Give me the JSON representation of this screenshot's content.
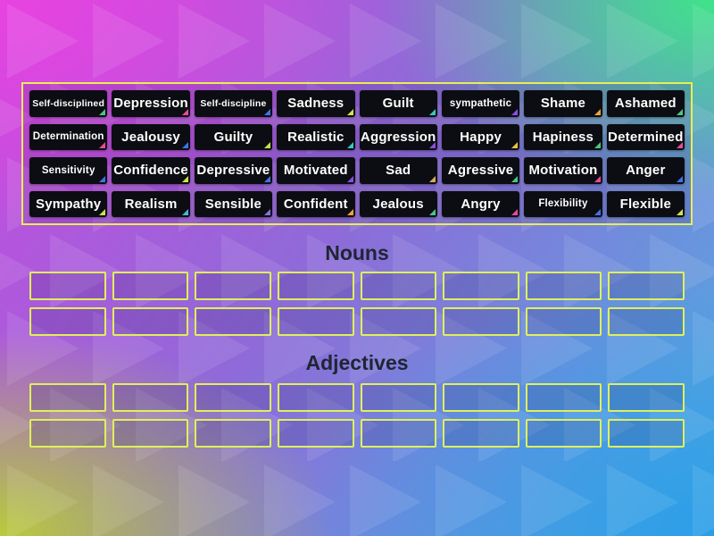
{
  "board": {
    "tiles": [
      {
        "label": "Self-disciplined",
        "corner": "#45c97e"
      },
      {
        "label": "Depression",
        "corner": "#e84a9b"
      },
      {
        "label": "Self-discipline",
        "corner": "#3d74e8"
      },
      {
        "label": "Sadness",
        "corner": "#d6e24a"
      },
      {
        "label": "Guilt",
        "corner": "#37c8c1"
      },
      {
        "label": "sympathetic",
        "corner": "#8a4fe0"
      },
      {
        "label": "Shame",
        "corner": "#efa23d"
      },
      {
        "label": "Ashamed",
        "corner": "#45c97e"
      },
      {
        "label": "Determination",
        "corner": "#e84a9b"
      },
      {
        "label": "Jealousy",
        "corner": "#3d74e8"
      },
      {
        "label": "Guilty",
        "corner": "#bfe24a"
      },
      {
        "label": "Realistic",
        "corner": "#37c8c1"
      },
      {
        "label": "Aggression",
        "corner": "#8a4fe0"
      },
      {
        "label": "Happy",
        "corner": "#e8c13d"
      },
      {
        "label": "Hapiness",
        "corner": "#45c97e"
      },
      {
        "label": "Determined",
        "corner": "#e84a9b"
      },
      {
        "label": "Sensitivity",
        "corner": "#3d74e8"
      },
      {
        "label": "Confidence",
        "corner": "#cde24a"
      },
      {
        "label": "Depressive",
        "corner": "#3d74e8"
      },
      {
        "label": "Motivated",
        "corner": "#8a4fe0"
      },
      {
        "label": "Sad",
        "corner": "#d9a85a"
      },
      {
        "label": "Agressive",
        "corner": "#45c97e"
      },
      {
        "label": "Motivation",
        "corner": "#e84a9b"
      },
      {
        "label": "Anger",
        "corner": "#3d74e8"
      },
      {
        "label": "Sympathy",
        "corner": "#cde24a"
      },
      {
        "label": "Realism",
        "corner": "#45b8d8"
      },
      {
        "label": "Sensible",
        "corner": "#8a6fe0"
      },
      {
        "label": "Confident",
        "corner": "#efa23d"
      },
      {
        "label": "Jealous",
        "corner": "#45c97e"
      },
      {
        "label": "Angry",
        "corner": "#e84a9b"
      },
      {
        "label": "Flexibility",
        "corner": "#3d74e8"
      },
      {
        "label": "Flexible",
        "corner": "#d6e24a"
      }
    ]
  },
  "groups": [
    {
      "title": "Nouns",
      "slots": 16
    },
    {
      "title": "Adjectives",
      "slots": 16
    }
  ],
  "colors": {
    "board_border": "#e7ee57",
    "slot_border": "#dff05c",
    "tile_bg": "#0c0d12",
    "tile_text": "#ffffff",
    "heading_text": "#1f2633"
  }
}
